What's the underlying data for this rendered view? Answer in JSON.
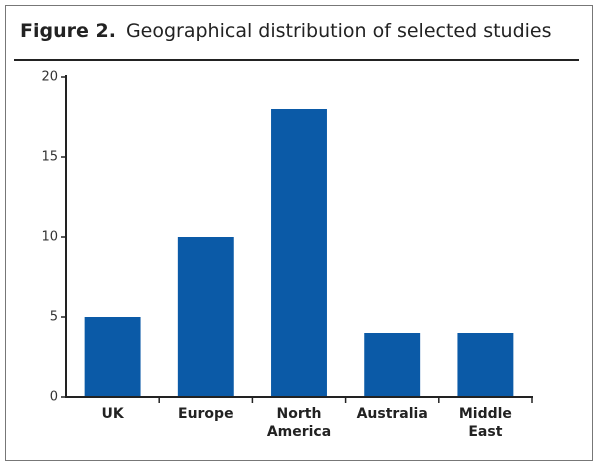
{
  "chart_data": {
    "type": "bar",
    "title_label": "Figure 2.",
    "title": "Geographical distribution of selected studies",
    "categories": [
      "UK",
      "Europe",
      "North America",
      "Australia",
      "Middle East"
    ],
    "values": [
      5,
      10,
      18,
      4,
      4
    ],
    "color": "#0b5aa7",
    "ylim": [
      0,
      20
    ],
    "yticks": [
      0,
      5,
      10,
      15,
      20
    ]
  }
}
